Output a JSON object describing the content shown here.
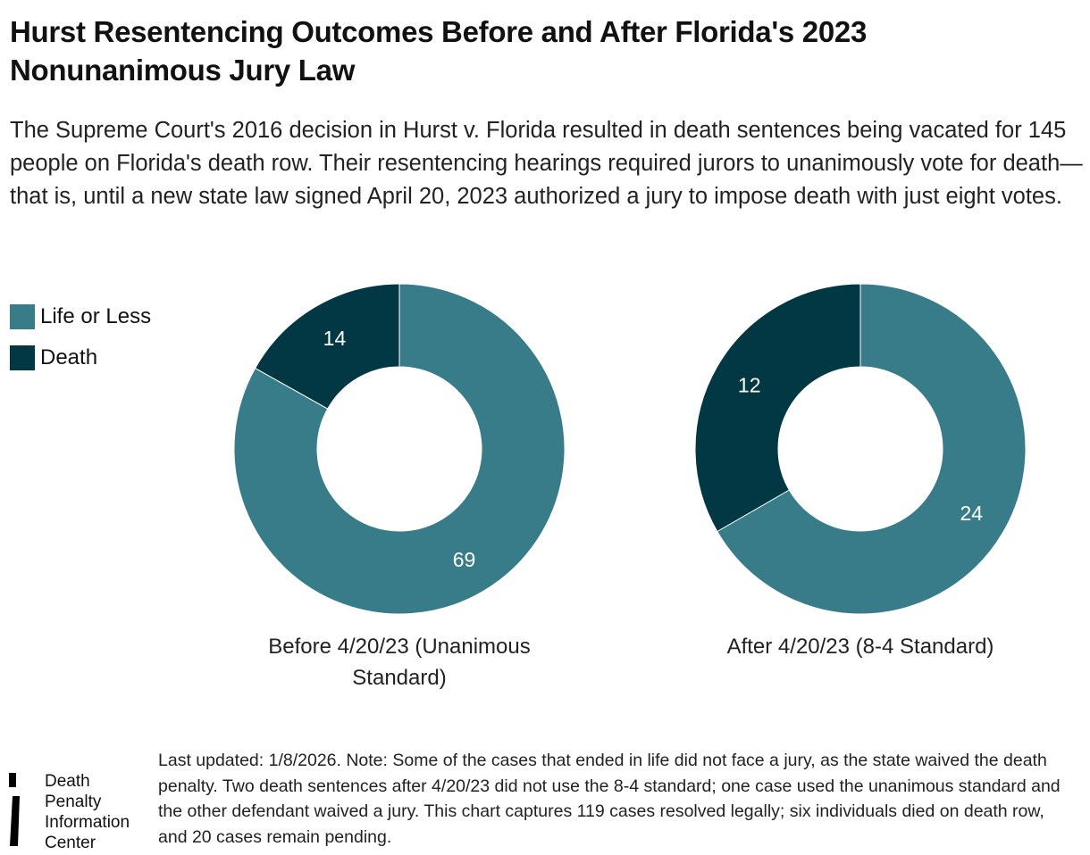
{
  "title": "Hurst Resentencing Outcomes Before and After Florida's 2023 Nonunanimous Jury Law",
  "subtitle": "The Supreme Court's 2016 decision in Hurst v. Florida resulted in death sentences being vacated for 145 people on Florida's death row. Their resentencing hearings required jurors to unanimously vote for death—that is, until a new state law signed April 20, 2023 authorized a jury to impose death with just eight votes.",
  "legend": [
    {
      "label": "Life or Less",
      "color": "#387c89"
    },
    {
      "label": "Death",
      "color": "#023744"
    }
  ],
  "chart_data": [
    {
      "type": "pie",
      "title": "Before 4/20/23 (Unanimous Standard)",
      "categories": [
        "Life or Less",
        "Death"
      ],
      "values": [
        69,
        14
      ],
      "donut": true
    },
    {
      "type": "pie",
      "title": "After 4/20/23 (8-4 Standard)",
      "categories": [
        "Life or Less",
        "Death"
      ],
      "values": [
        24,
        12
      ],
      "donut": true
    }
  ],
  "note": "Last updated: 1/8/2026. Note: Some of the cases that ended in life did not face a jury, as the state waived the death penalty. Two death sentences after 4/20/23 did not use the 8-4 standard; one case used the unanimous standard and the other defendant waived a jury. This chart captures 119 cases resolved legally; six individuals died on death row, and 20 cases remain pending.",
  "logo": {
    "line1": "Death",
    "line2": "Penalty",
    "line3": "Information",
    "line4": "Center"
  }
}
